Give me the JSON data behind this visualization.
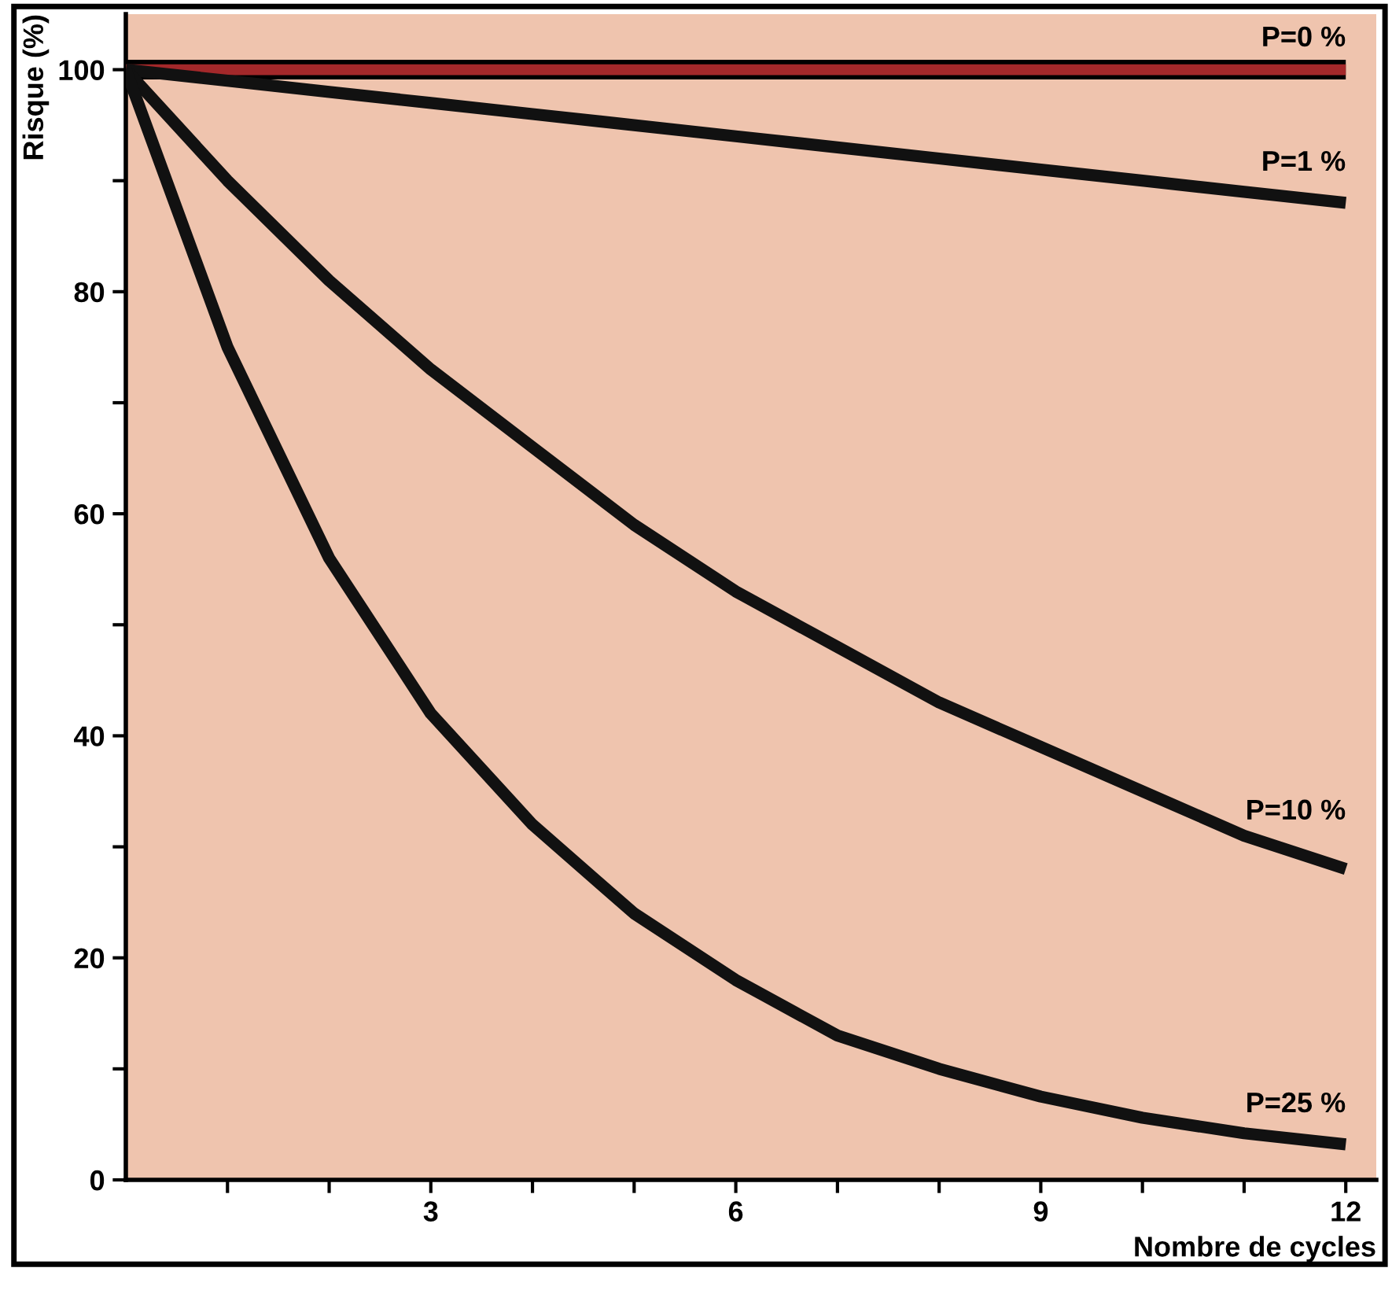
{
  "chart_data": {
    "type": "line",
    "xlabel": "Nombre de cycles",
    "ylabel": "Risque (%)",
    "x": [
      0,
      1,
      2,
      3,
      4,
      5,
      6,
      7,
      8,
      9,
      10,
      11,
      12
    ],
    "series": [
      {
        "name": "P=0 %",
        "color": "#a3282a",
        "values": [
          100,
          100,
          100,
          100,
          100,
          100,
          100,
          100,
          100,
          100,
          100,
          100,
          100
        ]
      },
      {
        "name": "P=1 %",
        "color": "#111111",
        "values": [
          100,
          99,
          98,
          97,
          96,
          95,
          94,
          93,
          92,
          91,
          90,
          89,
          88
        ]
      },
      {
        "name": "P=10 %",
        "color": "#111111",
        "values": [
          100,
          90,
          81,
          73,
          66,
          59,
          53,
          48,
          43,
          39,
          35,
          31,
          28
        ]
      },
      {
        "name": "P=25 %",
        "color": "#111111",
        "values": [
          100,
          75,
          56,
          42,
          32,
          24,
          18,
          13,
          10,
          7.5,
          5.6,
          4.2,
          3.2
        ]
      }
    ],
    "xlim": [
      0,
      12.3
    ],
    "ylim": [
      0,
      105
    ],
    "xticks": [
      {
        "value": 1,
        "label": null
      },
      {
        "value": 2,
        "label": null
      },
      3,
      {
        "value": 4,
        "label": null
      },
      {
        "value": 5,
        "label": null
      },
      6,
      {
        "value": 7,
        "label": null
      },
      {
        "value": 8,
        "label": null
      },
      9,
      {
        "value": 10,
        "label": null
      },
      {
        "value": 11,
        "label": null
      },
      12
    ],
    "yticks": [
      0,
      {
        "value": 10,
        "label": null
      },
      20,
      {
        "value": 30,
        "label": null
      },
      40,
      {
        "value": 50,
        "label": null
      },
      60,
      {
        "value": 70,
        "label": null
      },
      80,
      {
        "value": 90,
        "label": null
      },
      100
    ],
    "grid": false,
    "legend": false,
    "marker": "none",
    "line_style": "solid"
  }
}
